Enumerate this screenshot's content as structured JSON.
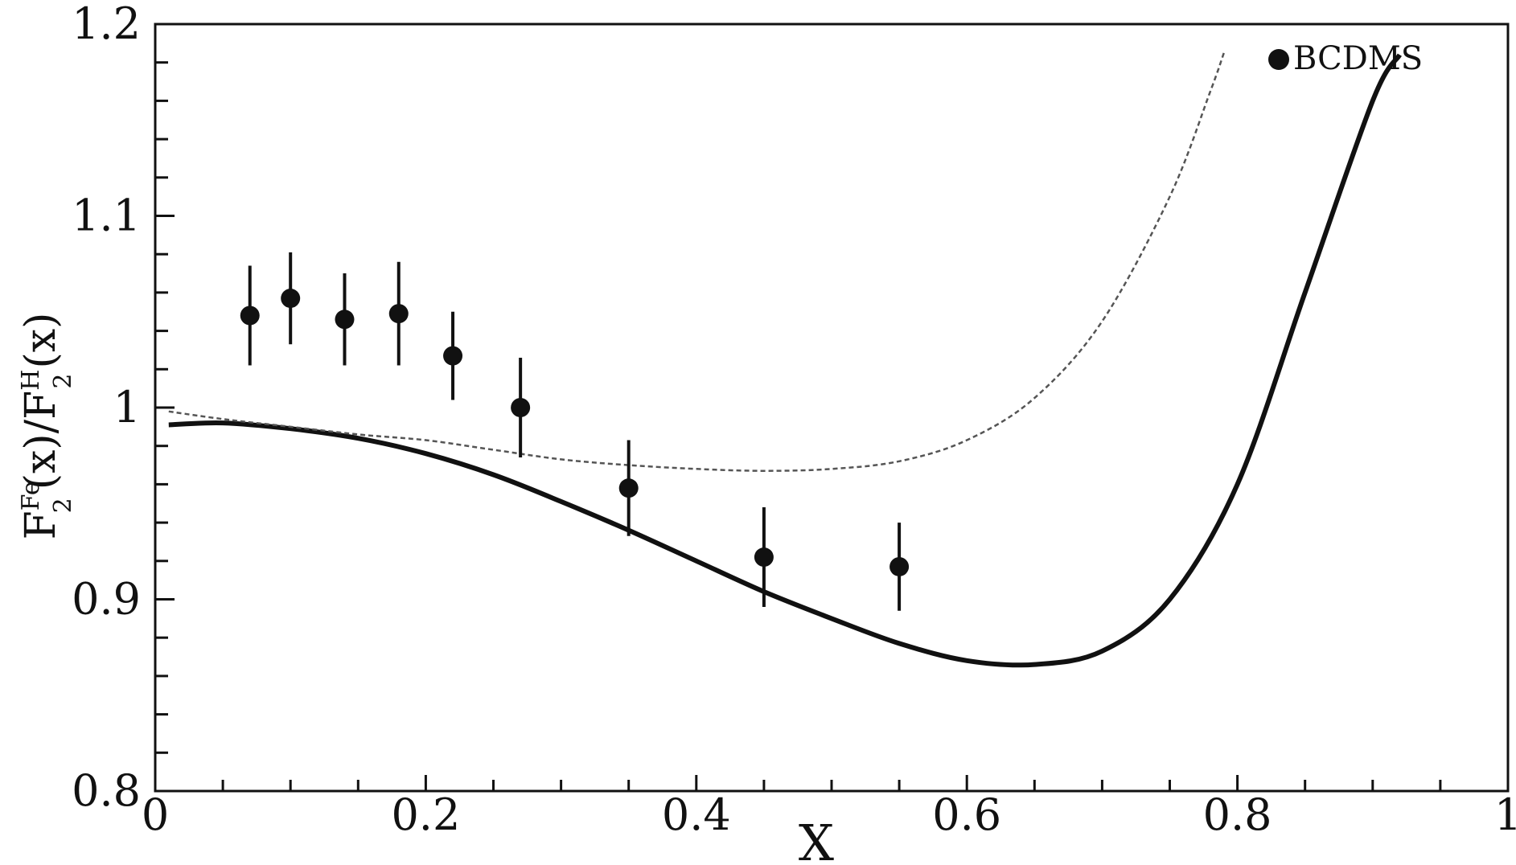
{
  "chart_data": {
    "type": "scatter",
    "title": "",
    "xlabel": "X",
    "ylabel": {
      "parts": [
        "F",
        "Fe",
        "2",
        "(x)/F",
        "H",
        "2",
        "(x)"
      ]
    },
    "xlim": [
      0,
      1
    ],
    "ylim": [
      0.8,
      1.2
    ],
    "x_ticks": [
      "0",
      "0.2",
      "0.4",
      "0.6",
      "0.8",
      "1"
    ],
    "y_ticks": [
      "0.8",
      "0.9",
      "1",
      "1.1",
      "1.2"
    ],
    "grid": false,
    "legend_position": "top-right",
    "series": [
      {
        "name": "BCDMS",
        "kind": "points-with-errorbars",
        "color": "#111111",
        "points": [
          {
            "x": 0.07,
            "y": 1.048,
            "err": 0.026
          },
          {
            "x": 0.1,
            "y": 1.057,
            "err": 0.024
          },
          {
            "x": 0.14,
            "y": 1.046,
            "err": 0.024
          },
          {
            "x": 0.18,
            "y": 1.049,
            "err": 0.027
          },
          {
            "x": 0.22,
            "y": 1.027,
            "err": 0.023
          },
          {
            "x": 0.27,
            "y": 1.0,
            "err": 0.026
          },
          {
            "x": 0.35,
            "y": 0.958,
            "err": 0.025
          },
          {
            "x": 0.45,
            "y": 0.922,
            "err": 0.026
          },
          {
            "x": 0.55,
            "y": 0.917,
            "err": 0.023
          }
        ]
      },
      {
        "kind": "solid-curve",
        "color": "#111111",
        "x": [
          0.01,
          0.05,
          0.1,
          0.15,
          0.2,
          0.25,
          0.3,
          0.35,
          0.4,
          0.45,
          0.5,
          0.55,
          0.6,
          0.65,
          0.7,
          0.75,
          0.8,
          0.85,
          0.9,
          0.92
        ],
        "y": [
          0.991,
          0.992,
          0.989,
          0.984,
          0.976,
          0.965,
          0.951,
          0.936,
          0.92,
          0.904,
          0.89,
          0.877,
          0.868,
          0.866,
          0.873,
          0.9,
          0.96,
          1.06,
          1.16,
          1.184
        ]
      },
      {
        "kind": "dotted-curve",
        "color": "#555555",
        "x": [
          0.01,
          0.05,
          0.1,
          0.15,
          0.2,
          0.25,
          0.3,
          0.35,
          0.4,
          0.45,
          0.5,
          0.55,
          0.6,
          0.65,
          0.7,
          0.75,
          0.78,
          0.79
        ],
        "y": [
          0.998,
          0.994,
          0.99,
          0.986,
          0.983,
          0.978,
          0.973,
          0.97,
          0.968,
          0.967,
          0.968,
          0.972,
          0.983,
          1.005,
          1.045,
          1.11,
          1.165,
          1.185
        ]
      }
    ]
  }
}
